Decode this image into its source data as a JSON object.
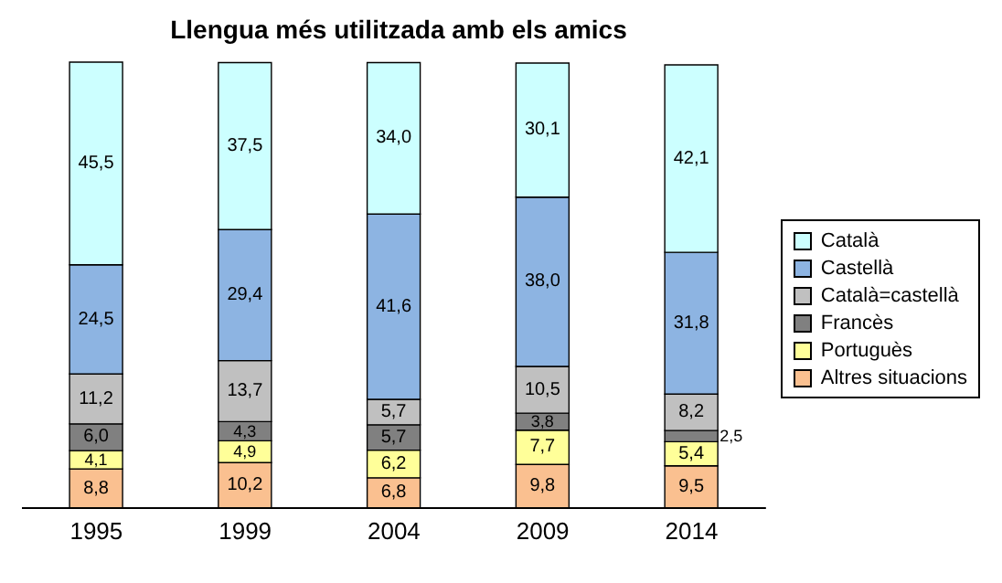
{
  "chart_data": {
    "type": "bar",
    "title": "Llengua més utilitzada amb els amics",
    "categories": [
      "1995",
      "1999",
      "2004",
      "2009",
      "2014"
    ],
    "stacked": true,
    "legend": "right",
    "series": [
      {
        "name": "Altres situacions",
        "color": "#fac090",
        "values": [
          8.8,
          10.2,
          6.8,
          9.8,
          9.5
        ],
        "value_labels": [
          "8,8",
          "10,2",
          "6,8",
          "9,8",
          "9,5"
        ]
      },
      {
        "name": "Portuguès",
        "color": "#ffff99",
        "values": [
          4.1,
          4.9,
          6.2,
          7.7,
          5.4
        ],
        "value_labels": [
          "4,1",
          "4,9",
          "6,2",
          "7,7",
          "5,4"
        ]
      },
      {
        "name": "Francès",
        "color": "#808080",
        "values": [
          6.0,
          4.3,
          5.7,
          3.8,
          2.5
        ],
        "value_labels": [
          "6,0",
          "4,3",
          "5,7",
          "3,8",
          "2,5"
        ]
      },
      {
        "name": "Català=castellà",
        "color": "#c0c0c0",
        "values": [
          11.2,
          13.7,
          5.7,
          10.5,
          8.2
        ],
        "value_labels": [
          "11,2",
          "13,7",
          "5,7",
          "10,5",
          "8,2"
        ]
      },
      {
        "name": "Castellà",
        "color": "#8db4e2",
        "values": [
          24.5,
          29.4,
          41.6,
          38.0,
          31.8
        ],
        "value_labels": [
          "24,5",
          "29,4",
          "41,6",
          "38,0",
          "31,8"
        ]
      },
      {
        "name": "Català",
        "color": "#ccffff",
        "values": [
          45.5,
          37.5,
          34.0,
          30.1,
          42.1
        ],
        "value_labels": [
          "45,5",
          "37,5",
          "34,0",
          "30,1",
          "42,1"
        ]
      }
    ]
  }
}
